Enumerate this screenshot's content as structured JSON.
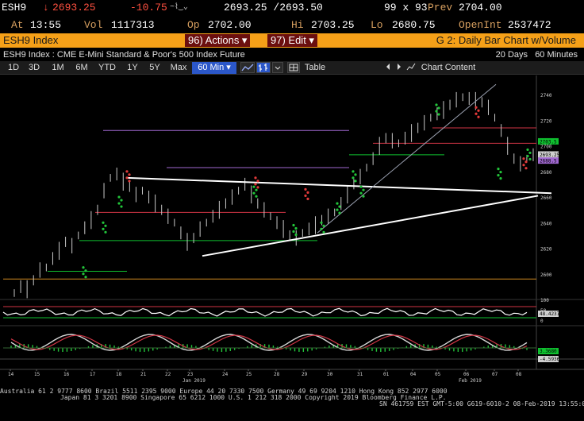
{
  "quote": {
    "ticker": "ESH9",
    "arrow": "↓",
    "last": "2693.25",
    "change": "-10.75",
    "bid_ask": "2693.25 /2693.50",
    "size": "99 x 93",
    "prev_label": "Prev",
    "prev": "2704.00",
    "at_label": "At",
    "time": "13:55",
    "vol_label": "Vol",
    "volume": "1117313",
    "op_label": "Op",
    "open": "2702.00",
    "hi_label": "Hi",
    "high": "2703.25",
    "lo_label": "Lo",
    "low": "2680.75",
    "oi_label": "OpenInt",
    "open_interest": "2537472"
  },
  "header": {
    "security": "ESH9 Index",
    "actions_menu": "96) Actions ▾",
    "edit_menu": "97) Edit ▾",
    "chart_title": "G 2: Daily Bar Chart w/Volume",
    "description": "ESH9 Index : CME E-Mini Standard & Poor's 500 Index Future",
    "period_days": "20 Days",
    "period_interval": "60 Minutes"
  },
  "toolbar": {
    "ranges": [
      "1D",
      "3D",
      "1M",
      "6M",
      "YTD",
      "1Y",
      "5Y",
      "Max"
    ],
    "interval": "60 Min ▾",
    "table_label": "Table",
    "chart_content_label": "Chart Content"
  },
  "chart_data": {
    "type": "bar",
    "ylim": [
      2580,
      2750
    ],
    "y_ticks": [
      "2740",
      "2720",
      "2700",
      "2680",
      "2660",
      "2640",
      "2620",
      "2600"
    ],
    "price_badges": [
      "2703.5",
      "2693.25",
      "2688.5"
    ],
    "x_day_labels": [
      "14",
      "15",
      "16",
      "17",
      "18",
      "21",
      "22",
      "23",
      "24",
      "25",
      "28",
      "29",
      "30",
      "31",
      "01",
      "04",
      "05",
      "06",
      "07",
      "08"
    ],
    "x_month_labels": [
      "Jan 2019",
      "Feb 2019"
    ],
    "close": [
      2585,
      2590,
      2588,
      2595,
      2603,
      2605,
      2612,
      2618,
      2625,
      2622,
      2630,
      2636,
      2642,
      2650,
      2665,
      2675,
      2678,
      2672,
      2668,
      2662,
      2665,
      2660,
      2655,
      2650,
      2645,
      2640,
      2632,
      2625,
      2628,
      2635,
      2640,
      2645,
      2650,
      2655,
      2660,
      2665,
      2670,
      2662,
      2655,
      2650,
      2645,
      2640,
      2635,
      2630,
      2628,
      2632,
      2635,
      2638,
      2642,
      2645,
      2648,
      2655,
      2662,
      2670,
      2676,
      2683,
      2690,
      2700,
      2706,
      2704,
      2702,
      2706,
      2710,
      2714,
      2718,
      2722,
      2725,
      2728,
      2732,
      2736,
      2738,
      2737,
      2735,
      2734,
      2730,
      2722,
      2712,
      2700,
      2690,
      2686,
      2690,
      2693
    ],
    "rsi_label": "48.4237",
    "rsi_ticks": [
      "100",
      "50",
      "0"
    ],
    "macd_label": "-4.5936",
    "macd_badge": "3.3680"
  },
  "footer": {
    "line1": "Australia 61 2 9777 8600  Brazil 5511 2395 9000  Europe 44 20 7330 7500  Germany 49 69 9204 1210  Hong Kong 852 2977 6000",
    "line2": "Japan 81 3 3201 8900       Singapore 65 6212 1000       U.S. 1 212 318 2000            Copyright 2019 Bloomberg Finance L.P.",
    "line3": "SN 461759 EST  GMT-5:00 G619-6010-2 08-Feb-2019 13:55:05"
  },
  "colors": {
    "brand_orange": "#f5a018",
    "menu_red": "#6b0f0f",
    "label_tan": "#d8a060",
    "negative": "#ff5040",
    "active_blue": "#2b57c9",
    "bar_color": "#c9c9c9",
    "signal_green": "#22c53a",
    "signal_red": "#e23a3a",
    "green_level": "#0fbf2f",
    "red_level": "#d03545",
    "purple_level": "#a068d0"
  }
}
